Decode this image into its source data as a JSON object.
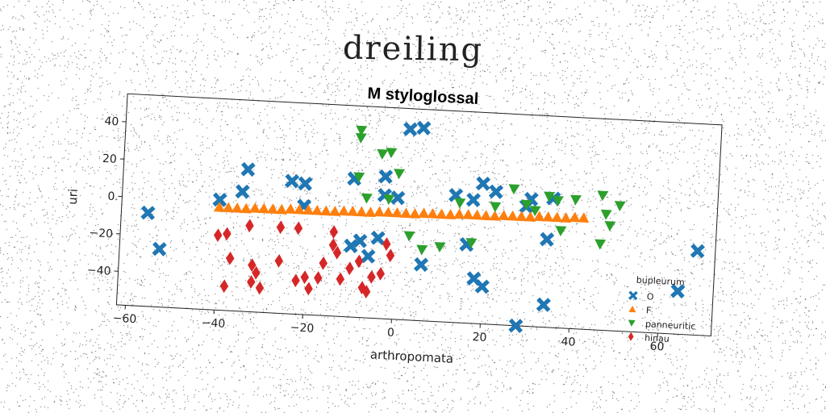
{
  "page": {
    "figure_title": "dreiling"
  },
  "chart_data": {
    "type": "scatter",
    "title": "M styloglossal",
    "xlabel": "arthropomata",
    "ylabel": "uri",
    "xlim": [
      -62,
      72
    ],
    "ylim": [
      -58,
      55
    ],
    "xticks": [
      -60,
      -40,
      -20,
      0,
      20,
      40,
      60
    ],
    "yticks": [
      -40,
      -20,
      0,
      20,
      40
    ],
    "grid": false,
    "legend": {
      "title": "bupleurum",
      "placement": "lower-right"
    },
    "series": [
      {
        "name": "O",
        "marker": "x",
        "color": "#1f77b4",
        "points": [
          [
            -56,
            -8
          ],
          [
            -53,
            -27
          ],
          [
            -40,
            1
          ],
          [
            -35,
            6
          ],
          [
            -34,
            18
          ],
          [
            -24,
            13
          ],
          [
            -21,
            12
          ],
          [
            -21,
            0
          ],
          [
            -10,
            16
          ],
          [
            -10,
            -20
          ],
          [
            -8,
            -17
          ],
          [
            -6,
            -25
          ],
          [
            -4,
            -15
          ],
          [
            -3,
            18
          ],
          [
            -3,
            8
          ],
          [
            0,
            7
          ],
          [
            2,
            44
          ],
          [
            5,
            45
          ],
          [
            6,
            -28
          ],
          [
            13,
            10
          ],
          [
            16,
            -16
          ],
          [
            17,
            8
          ],
          [
            19,
            17
          ],
          [
            18,
            -34
          ],
          [
            20,
            -38
          ],
          [
            22,
            13
          ],
          [
            28,
            -58
          ],
          [
            29,
            6
          ],
          [
            30,
            10
          ],
          [
            34,
            -11
          ],
          [
            34,
            -46
          ],
          [
            35,
            11
          ],
          [
            64,
            -35
          ],
          [
            68,
            -13
          ]
        ]
      },
      {
        "name": "F",
        "marker": "^",
        "color": "#ff7f0e",
        "points": [
          [
            -40,
            -3
          ],
          [
            -38,
            -3
          ],
          [
            -36,
            -3
          ],
          [
            -34,
            -3
          ],
          [
            -32,
            -2.5
          ],
          [
            -30,
            -2.5
          ],
          [
            -28,
            -2.5
          ],
          [
            -26,
            -2.5
          ],
          [
            -24,
            -2
          ],
          [
            -22,
            -2
          ],
          [
            -20,
            -2
          ],
          [
            -18,
            -2
          ],
          [
            -16,
            -2
          ],
          [
            -14,
            -2
          ],
          [
            -12,
            -1.5
          ],
          [
            -10,
            -1.5
          ],
          [
            -8,
            -1.5
          ],
          [
            -6,
            -1.5
          ],
          [
            -4,
            -1
          ],
          [
            -2,
            -1
          ],
          [
            0,
            -1
          ],
          [
            2,
            -1
          ],
          [
            4,
            -1
          ],
          [
            6,
            -0.5
          ],
          [
            8,
            -0.5
          ],
          [
            10,
            -0.5
          ],
          [
            12,
            -0.5
          ],
          [
            14,
            0
          ],
          [
            16,
            0
          ],
          [
            18,
            0
          ],
          [
            20,
            0
          ],
          [
            22,
            0
          ],
          [
            24,
            0.5
          ],
          [
            26,
            0.5
          ],
          [
            28,
            0.5
          ],
          [
            30,
            0.5
          ],
          [
            32,
            1
          ],
          [
            34,
            1
          ],
          [
            36,
            1
          ],
          [
            38,
            1
          ],
          [
            40,
            1.5
          ],
          [
            42,
            1.5
          ]
        ]
      },
      {
        "name": "panneuritic",
        "marker": "v",
        "color": "#2ca02c",
        "points": [
          [
            -9,
            42
          ],
          [
            -9,
            38
          ],
          [
            -9,
            17
          ],
          [
            -7,
            6
          ],
          [
            -4,
            30
          ],
          [
            -2,
            31
          ],
          [
            -2,
            6
          ],
          [
            0,
            20
          ],
          [
            3,
            -13
          ],
          [
            6,
            -20
          ],
          [
            10,
            -18
          ],
          [
            14,
            6
          ],
          [
            17,
            -15
          ],
          [
            22,
            5
          ],
          [
            26,
            15
          ],
          [
            29,
            7
          ],
          [
            31,
            4
          ],
          [
            34,
            12
          ],
          [
            36,
            10
          ],
          [
            37,
            -6
          ],
          [
            40,
            11
          ],
          [
            46,
            14
          ],
          [
            46,
            -12
          ],
          [
            47,
            4
          ],
          [
            48,
            -2
          ],
          [
            50,
            9
          ]
        ]
      },
      {
        "name": "hinau",
        "marker": "D",
        "color": "#d62728",
        "points": [
          [
            -40,
            -18
          ],
          [
            -38,
            -45
          ],
          [
            -38,
            -17
          ],
          [
            -37,
            -30
          ],
          [
            -33,
            -12
          ],
          [
            -32,
            -33
          ],
          [
            -32,
            -42
          ],
          [
            -31,
            -37
          ],
          [
            -30,
            -45
          ],
          [
            -26,
            -30
          ],
          [
            -26,
            -12
          ],
          [
            -22,
            -12
          ],
          [
            -22,
            -40
          ],
          [
            -20,
            -38
          ],
          [
            -19,
            -44
          ],
          [
            -17,
            -38
          ],
          [
            -16,
            -30
          ],
          [
            -14,
            -13
          ],
          [
            -14,
            -20
          ],
          [
            -13,
            -24
          ],
          [
            -12,
            -38
          ],
          [
            -10,
            -32
          ],
          [
            -8,
            -28
          ],
          [
            -7,
            -42
          ],
          [
            -6,
            -44
          ],
          [
            -5,
            -36
          ],
          [
            -3,
            -34
          ],
          [
            -2,
            -18
          ],
          [
            -1,
            -24
          ]
        ]
      }
    ]
  }
}
